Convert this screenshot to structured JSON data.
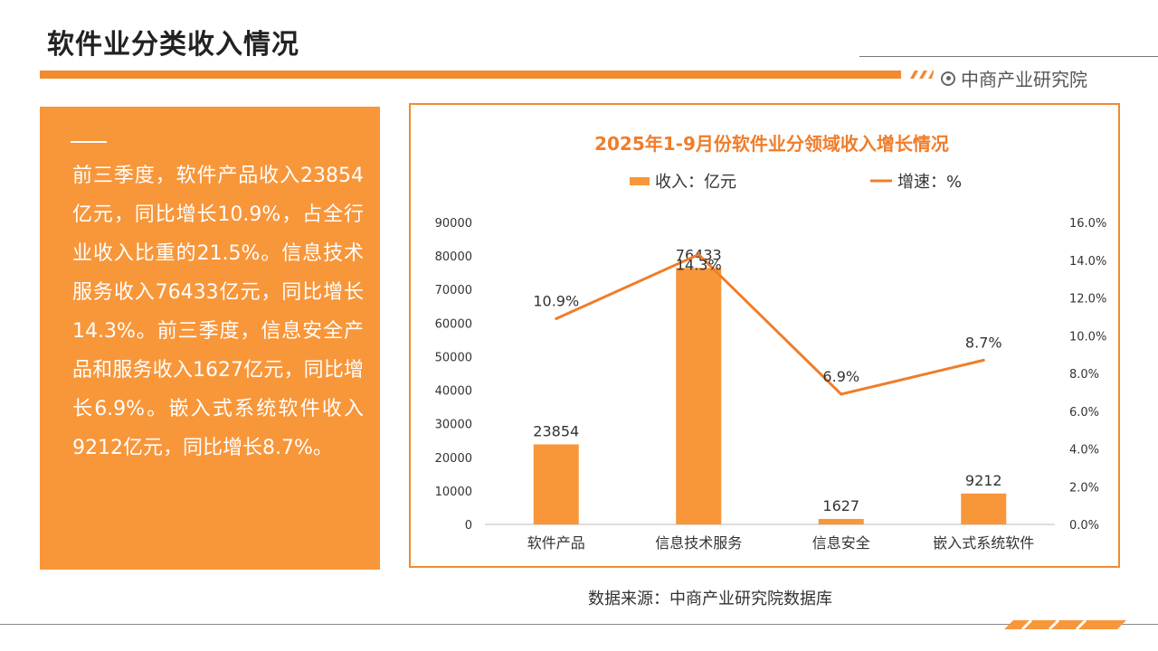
{
  "header": {
    "title": "软件业分类收入情况",
    "brand": "中商产业研究院"
  },
  "left_panel": {
    "text": "前三季度，软件产品收入23854亿元，同比增长10.9%，占全行业收入比重的21.5%。信息技术服务收入76433亿元，同比增长14.3%。前三季度，信息安全产品和服务收入1627亿元，同比增长6.9%。嵌入式系统软件收入9212亿元，同比增长8.7%。"
  },
  "footer": {
    "source": "数据来源：中商产业研究院数据库"
  },
  "colors": {
    "accent": "#f28a30",
    "panel": "#f8963a",
    "bar": "#f8963a",
    "line": "#f07d2a",
    "title_text": "#f07d2a"
  },
  "chart_data": {
    "type": "bar",
    "title": "2025年1-9月份软件业分领域收入增长情况",
    "categories": [
      "软件产品",
      "信息技术服务",
      "信息安全",
      "嵌入式系统软件"
    ],
    "series": [
      {
        "name": "收入：亿元",
        "type": "bar",
        "axis": "left",
        "values": [
          23854,
          76433,
          1627,
          9212
        ],
        "labels": [
          "23854",
          "76433",
          "1627",
          "9212"
        ]
      },
      {
        "name": "增速：%",
        "type": "line",
        "axis": "right",
        "values": [
          10.9,
          14.3,
          6.9,
          8.7
        ],
        "labels": [
          "10.9%",
          "14.3%",
          "6.9%",
          "8.7%"
        ]
      }
    ],
    "y_left": {
      "min": 0,
      "max": 90000,
      "ticks": [
        "0",
        "10000",
        "20000",
        "30000",
        "40000",
        "50000",
        "60000",
        "70000",
        "80000",
        "90000"
      ]
    },
    "y_right": {
      "min": 0,
      "max": 16,
      "ticks": [
        "0.0%",
        "2.0%",
        "4.0%",
        "6.0%",
        "8.0%",
        "10.0%",
        "12.0%",
        "14.0%",
        "16.0%"
      ]
    },
    "legend_position": "top-center",
    "grid": false
  }
}
